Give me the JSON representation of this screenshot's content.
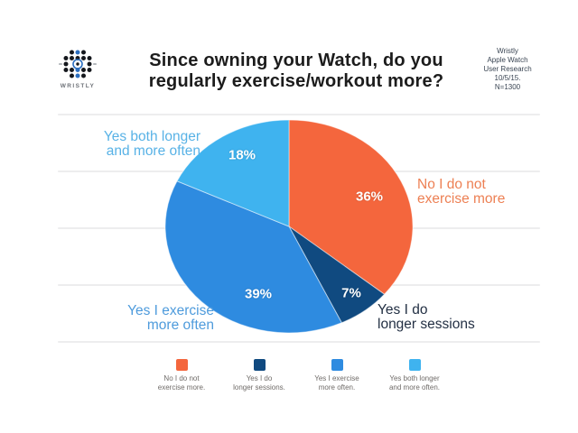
{
  "logo": {
    "brand": "WRISTLY"
  },
  "header": {
    "title_line1": "Since owning your Watch, do you",
    "title_line2": "regularly exercise/workout more?",
    "info_lines": [
      "Wristly",
      "Apple Watch",
      "User Research",
      "10/5/15.",
      "N=1300"
    ]
  },
  "chart_data": {
    "type": "pie",
    "title": "Since owning your Watch, do you regularly exercise/workout more?",
    "start_angle_deg": 0,
    "direction": "clockwise",
    "slices": [
      {
        "label": "No I do not exercise more",
        "value": 36,
        "pct_label": "36%",
        "color": "#F4663D"
      },
      {
        "label": "Yes I do longer sessions",
        "value": 7,
        "pct_label": "7%",
        "color": "#104A80"
      },
      {
        "label": "Yes I exercise more often",
        "value": 39,
        "pct_label": "39%",
        "color": "#2E8BE0"
      },
      {
        "label": "Yes both longer and more often",
        "value": 18,
        "pct_label": "18%",
        "color": "#3FB3EF"
      }
    ],
    "source_note": "Wristly Apple Watch User Research 10/5/15. N=1300",
    "legend_position": "bottom",
    "grid": "horizontal-lines"
  },
  "callouts": {
    "lightblue": {
      "line1": "Yes both longer",
      "line2": "and more often",
      "color": "#58B2E6"
    },
    "orange": {
      "line1": "No I do not",
      "line2": "exercise more",
      "color": "#ED8054"
    },
    "blue": {
      "line1": "Yes I exercise",
      "line2": "more often",
      "color": "#4E9BDC"
    },
    "navy": {
      "line1": "Yes I do",
      "line2": "longer sessions",
      "color": "#233044"
    }
  },
  "legend": [
    {
      "line1": "No I do not",
      "line2": "exercise more.",
      "color": "#F4663D"
    },
    {
      "line1": "Yes I do",
      "line2": "longer sessions.",
      "color": "#104A80"
    },
    {
      "line1": "Yes I exercise",
      "line2": "more often.",
      "color": "#2E8BE0"
    },
    {
      "line1": "Yes both longer",
      "line2": "and more often.",
      "color": "#3FB3EF"
    }
  ]
}
